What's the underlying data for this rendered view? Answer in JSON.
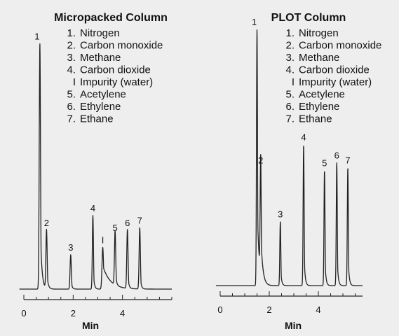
{
  "chart_data": [
    {
      "type": "line",
      "title": "Micropacked Column",
      "xlabel": "Min",
      "ylabel": "",
      "xlim": [
        0,
        6
      ],
      "x_ticks": [
        "0",
        "2",
        "4"
      ],
      "x_tick_values": [
        0,
        2,
        4
      ],
      "grid": false,
      "legend": [
        {
          "marker": "1.",
          "name": "Nitrogen"
        },
        {
          "marker": "2.",
          "name": "Carbon monoxide"
        },
        {
          "marker": "3.",
          "name": "Methane"
        },
        {
          "marker": "4.",
          "name": "Carbon dioxide"
        },
        {
          "marker": "I",
          "name": "Impurity (water)"
        },
        {
          "marker": "5.",
          "name": "Acetylene"
        },
        {
          "marker": "6.",
          "name": "Ethylene"
        },
        {
          "marker": "7.",
          "name": "Ethane"
        }
      ],
      "peaks": [
        {
          "label": "1",
          "time": 0.65,
          "height": 100,
          "sigma": 0.025,
          "tail": 0.06
        },
        {
          "label": "2",
          "time": 0.92,
          "height": 24,
          "sigma": 0.025,
          "tail": 0.05
        },
        {
          "label": "3",
          "time": 1.9,
          "height": 14,
          "sigma": 0.025,
          "tail": 0.04
        },
        {
          "label": "4",
          "time": 2.8,
          "height": 30,
          "sigma": 0.022,
          "tail": 0.04
        },
        {
          "label": "I",
          "time": 3.2,
          "height": 17,
          "sigma": 0.03,
          "tail": 0.3
        },
        {
          "label": "5",
          "time": 3.7,
          "height": 22,
          "sigma": 0.025,
          "tail": 0.04
        },
        {
          "label": "6",
          "time": 4.2,
          "height": 24,
          "sigma": 0.025,
          "tail": 0.04
        },
        {
          "label": "7",
          "time": 4.7,
          "height": 25,
          "sigma": 0.025,
          "tail": 0.04
        }
      ]
    },
    {
      "type": "line",
      "title": "PLOT Column",
      "xlabel": "Min",
      "ylabel": "",
      "xlim": [
        0,
        5.8
      ],
      "x_ticks": [
        "0",
        "2",
        "4"
      ],
      "x_tick_values": [
        0,
        2,
        4
      ],
      "grid": false,
      "legend": [
        {
          "marker": "1.",
          "name": "Nitrogen"
        },
        {
          "marker": "2.",
          "name": "Carbon monoxide"
        },
        {
          "marker": "3.",
          "name": "Methane"
        },
        {
          "marker": "4.",
          "name": "Carbon dioxide"
        },
        {
          "marker": "I",
          "name": "Impurity (water)"
        },
        {
          "marker": "5.",
          "name": "Acetylene"
        },
        {
          "marker": "6.",
          "name": "Ethylene"
        },
        {
          "marker": "7.",
          "name": "Ethane"
        }
      ],
      "peaks": [
        {
          "label": "1",
          "time": 1.5,
          "height": 100,
          "sigma": 0.02,
          "tail": 0.08
        },
        {
          "label": "2",
          "time": 1.65,
          "height": 46,
          "sigma": 0.02,
          "tail": 0.08
        },
        {
          "label": "3",
          "time": 2.45,
          "height": 25,
          "sigma": 0.02,
          "tail": 0.04
        },
        {
          "label": "4",
          "time": 3.4,
          "height": 55,
          "sigma": 0.02,
          "tail": 0.04
        },
        {
          "label": "5",
          "time": 4.25,
          "height": 45,
          "sigma": 0.02,
          "tail": 0.04
        },
        {
          "label": "6",
          "time": 4.75,
          "height": 48,
          "sigma": 0.02,
          "tail": 0.04
        },
        {
          "label": "7",
          "time": 5.2,
          "height": 46,
          "sigma": 0.02,
          "tail": 0.04
        }
      ]
    }
  ]
}
